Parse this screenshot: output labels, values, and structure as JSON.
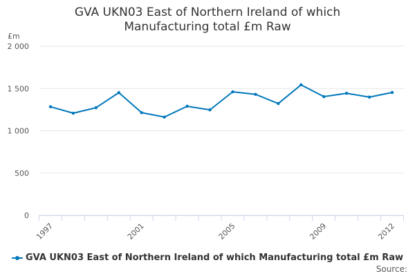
{
  "chart_data": {
    "type": "line",
    "title": "GVA UKN03 East of Northern Ireland of which Manufacturing total £m Raw",
    "title_lines": [
      "GVA UKN03 East of Northern Ireland of which",
      "Manufacturing total £m Raw"
    ],
    "ylabel": "£m",
    "xlabel": "",
    "ylim": [
      0,
      2000
    ],
    "yticks": [
      0,
      500,
      1000,
      1500,
      2000
    ],
    "ytick_labels": [
      "0",
      "500",
      "1 000",
      "1 500",
      "2 000"
    ],
    "xtick_labels": [
      "1997",
      "2001",
      "2005",
      "2009",
      "2012"
    ],
    "grid": true,
    "legend_position": "bottom",
    "series": [
      {
        "name": "GVA UKN03 East of Northern Ireland of which Manufacturing total £m Raw",
        "color": "#0077bb",
        "x": [
          1997,
          1998,
          1999,
          2000,
          2001,
          2002,
          2003,
          2004,
          2005,
          2006,
          2007,
          2008,
          2009,
          2010,
          2011,
          2012
        ],
        "values": [
          1284,
          1208,
          1273,
          1451,
          1214,
          1162,
          1290,
          1247,
          1461,
          1431,
          1322,
          1543,
          1404,
          1443,
          1398,
          1453
        ]
      }
    ]
  },
  "source_label": "Source:"
}
